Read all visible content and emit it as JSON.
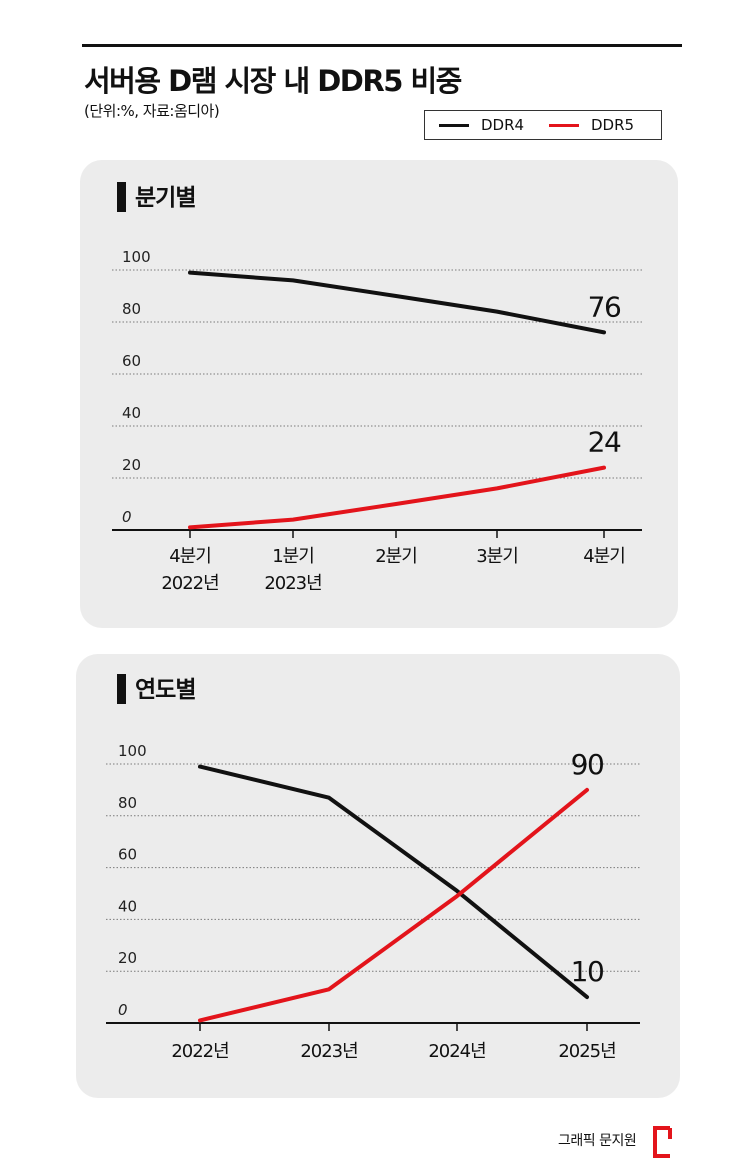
{
  "header": {
    "title": "서버용 D램 시장 내 DDR5 비중",
    "subtitle": "(단위:%, 자료:옴디아)"
  },
  "legend": [
    {
      "label": "DDR4",
      "color": "#111111"
    },
    {
      "label": "DDR5",
      "color": "#e3141b"
    }
  ],
  "footer": {
    "credit": "그래픽 문지원",
    "logo_icon": "bracket-logo-icon",
    "accent": "#e3141b"
  },
  "chart_data": [
    {
      "type": "line",
      "title": "분기별",
      "categories": [
        "4분기\n2022년",
        "1분기\n2023년",
        "2분기",
        "3분기",
        "4분기"
      ],
      "ylim": [
        0,
        100
      ],
      "yticks": [
        "0",
        "20",
        "40",
        "60",
        "80",
        "100"
      ],
      "grid": true,
      "series": [
        {
          "name": "DDR4",
          "color": "#111111",
          "values": [
            99,
            96,
            90,
            84,
            76
          ]
        },
        {
          "name": "DDR5",
          "color": "#e3141b",
          "values": [
            1,
            4,
            10,
            16,
            24
          ]
        }
      ],
      "annotations": [
        {
          "series": "DDR4",
          "index": 4,
          "text": "76"
        },
        {
          "series": "DDR5",
          "index": 4,
          "text": "24"
        }
      ]
    },
    {
      "type": "line",
      "title": "연도별",
      "categories": [
        "2022년",
        "2023년",
        "2024년",
        "2025년"
      ],
      "ylim": [
        0,
        100
      ],
      "yticks": [
        "0",
        "20",
        "40",
        "60",
        "80",
        "100"
      ],
      "grid": true,
      "series": [
        {
          "name": "DDR4",
          "color": "#111111",
          "values": [
            99,
            87,
            51,
            10
          ]
        },
        {
          "name": "DDR5",
          "color": "#e3141b",
          "values": [
            1,
            13,
            49,
            90
          ]
        }
      ],
      "annotations": [
        {
          "series": "DDR5",
          "index": 3,
          "text": "90"
        },
        {
          "series": "DDR4",
          "index": 3,
          "text": "10"
        }
      ]
    }
  ]
}
